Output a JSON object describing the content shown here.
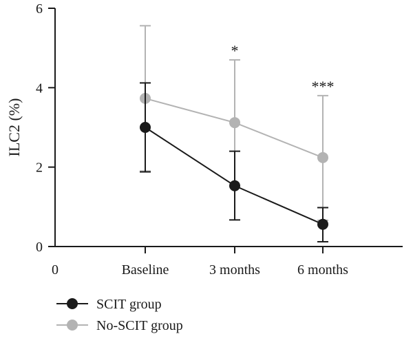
{
  "chart_data": {
    "type": "line",
    "title": "",
    "xlabel": "",
    "ylabel": "ILC2 (%)",
    "x_origin_label": "0",
    "categories": [
      "Baseline",
      "3 months",
      "6 months"
    ],
    "ylim": [
      0,
      6
    ],
    "yticks": [
      0,
      2,
      4,
      6
    ],
    "grid": false,
    "legend_position": "bottom-left",
    "series": [
      {
        "name": "SCIT group",
        "color": "#1a1a1a",
        "values": [
          3.0,
          1.53,
          0.56
        ],
        "error_upper": [
          4.12,
          2.4,
          0.98
        ],
        "error_lower": [
          1.88,
          0.67,
          0.12
        ]
      },
      {
        "name": "No-SCIT group",
        "color": "#b3b3b3",
        "values": [
          3.73,
          3.12,
          2.24
        ],
        "error_upper": [
          5.56,
          4.7,
          3.8
        ],
        "error_lower": [
          1.9,
          1.53,
          0.66
        ]
      }
    ],
    "annotations": [
      "",
      "*",
      "***"
    ]
  }
}
